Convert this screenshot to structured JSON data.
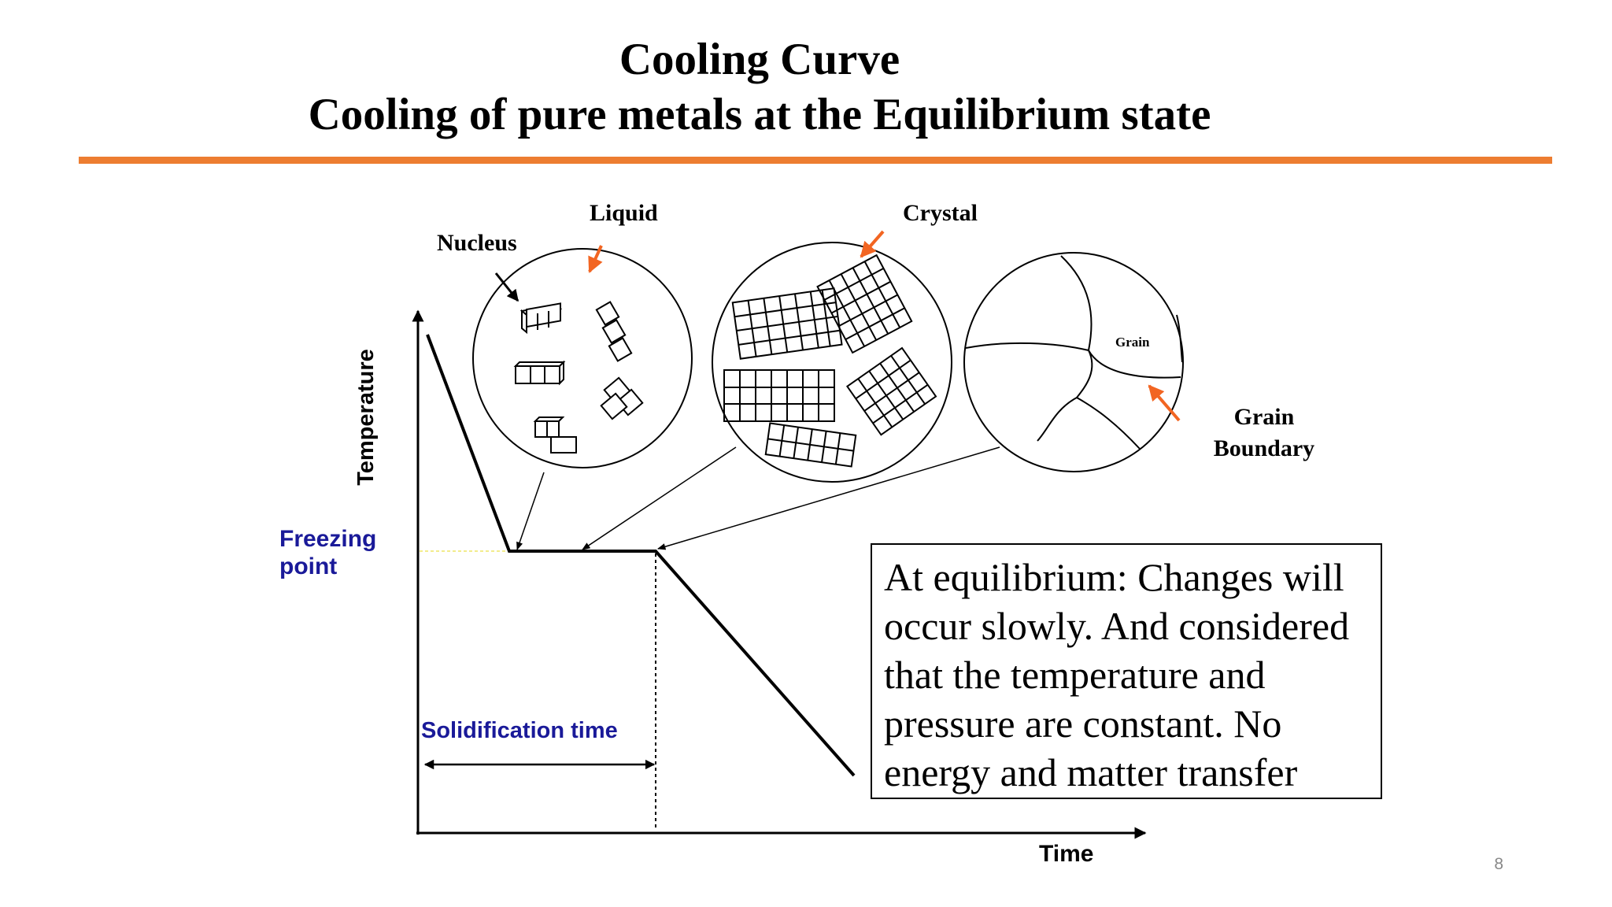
{
  "slide": {
    "title_line1": "Cooling Curve",
    "title_line2": "Cooling of pure metals at the Equilibrium state",
    "page_number": "8",
    "accent_color": "#ed7d31"
  },
  "diagram": {
    "labels": {
      "nucleus": "Nucleus",
      "liquid": "Liquid",
      "crystal": "Crystal",
      "grain": "Grain",
      "grain_boundary_line1": "Grain",
      "grain_boundary_line2": "Boundary",
      "freezing_point_line1": "Freezing",
      "freezing_point_line2": "point",
      "solidification_time": "Solidification time",
      "y_axis": "Temperature",
      "x_axis": "Time"
    },
    "label_color": "#1a1a99",
    "arrow_color": "#f26522"
  },
  "info_box": {
    "text": "At equilibrium: Changes will occur slowly. And considered that the temperature and pressure are constant. No energy and matter transfer"
  }
}
